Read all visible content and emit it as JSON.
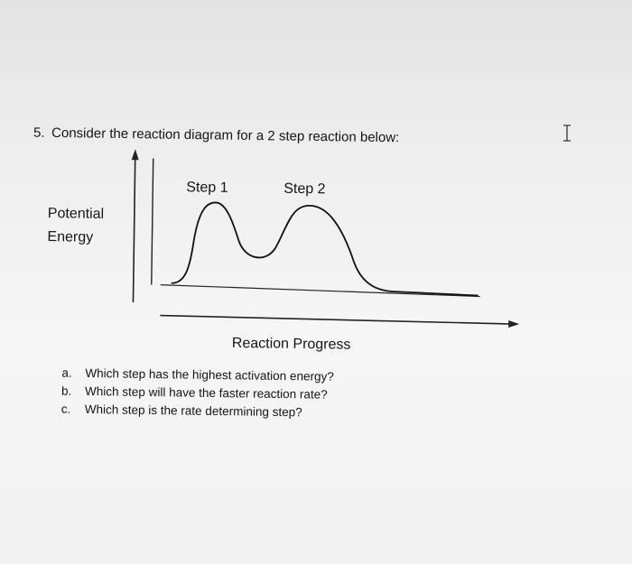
{
  "question": {
    "number": "5.",
    "prompt": "Consider the reaction diagram for a 2 step reaction below:"
  },
  "diagram": {
    "y_label_lines": [
      "Potential",
      "Energy"
    ],
    "steps": [
      "Step 1",
      "Step 2"
    ],
    "x_label": "Reaction Progress"
  },
  "subquestions": [
    {
      "marker": "a.",
      "text": "Which step has the highest activation energy?"
    },
    {
      "marker": "b.",
      "text": "Which step will have the faster reaction rate?"
    },
    {
      "marker": "c.",
      "text": "Which step is the rate determining step?"
    }
  ]
}
